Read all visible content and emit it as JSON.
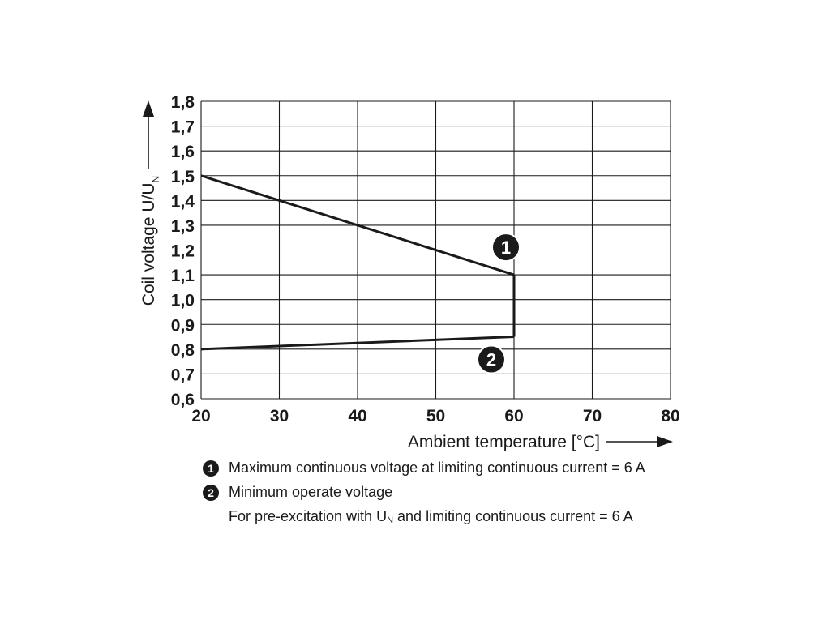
{
  "chart_data": {
    "type": "line",
    "xlabel": "Ambient temperature [°C]",
    "ylabel": "Coil voltage U/U",
    "ylabel_subscript": "N",
    "xlim": [
      20,
      80
    ],
    "ylim": [
      0.6,
      1.8
    ],
    "x_ticks": [
      "20",
      "30",
      "40",
      "50",
      "60",
      "70",
      "80"
    ],
    "y_ticks": [
      "0,6",
      "0,7",
      "0,8",
      "0,9",
      "1,0",
      "1,1",
      "1,2",
      "1,3",
      "1,4",
      "1,5",
      "1,6",
      "1,7",
      "1,8"
    ],
    "grid": true,
    "series": [
      {
        "marker": "1",
        "points": [
          [
            20,
            1.5
          ],
          [
            60,
            1.1
          ]
        ]
      },
      {
        "marker": "2",
        "points": [
          [
            20,
            0.8
          ],
          [
            60,
            0.85
          ]
        ]
      }
    ],
    "connector": [
      [
        60,
        1.1
      ],
      [
        60,
        0.85
      ]
    ]
  },
  "legend": [
    {
      "badge": "1",
      "text": "Maximum continuous voltage at limiting continuous current = 6 A"
    },
    {
      "badge": "2",
      "text": "Minimum operate voltage"
    }
  ],
  "legend_note": {
    "before": "For pre-excitation with U",
    "sub": "N",
    "after": " and limiting continuous current = 6 A"
  }
}
